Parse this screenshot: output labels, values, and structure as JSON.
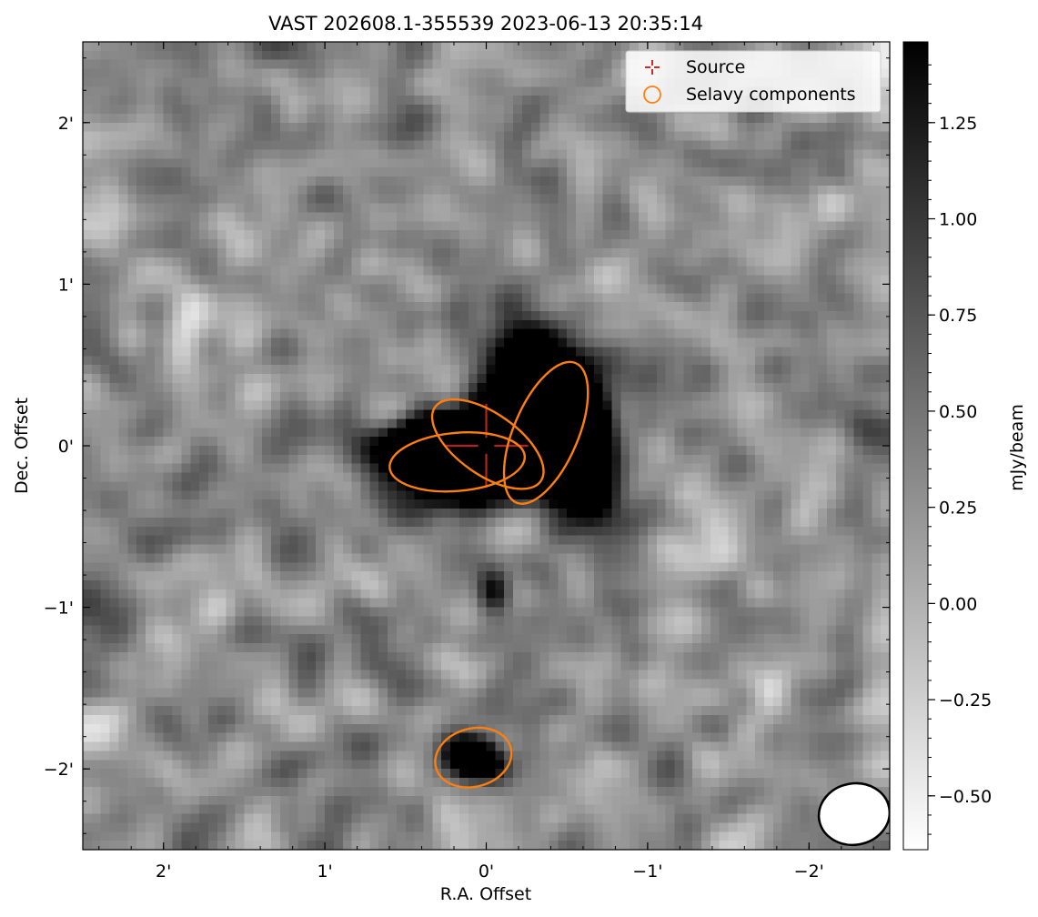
{
  "chart_data": {
    "type": "heatmap",
    "title": "VAST 202608.1-355539 2023-06-13 20:35:14",
    "xlabel": "R.A. Offset",
    "ylabel": "Dec. Offset",
    "xlim_arcmin": [
      2.5,
      -2.5
    ],
    "ylim_arcmin": [
      -2.5,
      2.5
    ],
    "x_ticks": [
      {
        "value": 2,
        "label": "2'"
      },
      {
        "value": 1,
        "label": "1'"
      },
      {
        "value": 0,
        "label": "0'"
      },
      {
        "value": -1,
        "label": "−1'"
      },
      {
        "value": -2,
        "label": "−2'"
      }
    ],
    "y_ticks": [
      {
        "value": 2,
        "label": "2'"
      },
      {
        "value": 1,
        "label": "1'"
      },
      {
        "value": 0,
        "label": "0'"
      },
      {
        "value": -1,
        "label": "−1'"
      },
      {
        "value": -2,
        "label": "−2'"
      }
    ],
    "colorbar": {
      "label": "mJy/beam",
      "range": [
        -0.64,
        1.46
      ],
      "colormap": "gray_r",
      "ticks": [
        {
          "value": 1.25,
          "label": "1.25"
        },
        {
          "value": 1.0,
          "label": "1.00"
        },
        {
          "value": 0.75,
          "label": "0.75"
        },
        {
          "value": 0.5,
          "label": "0.50"
        },
        {
          "value": 0.25,
          "label": "0.25"
        },
        {
          "value": 0.0,
          "label": "0.00"
        },
        {
          "value": -0.25,
          "label": "−0.25"
        },
        {
          "value": -0.5,
          "label": "−0.50"
        }
      ]
    },
    "legend": {
      "placement": "top-right",
      "entries": [
        {
          "label": "Source",
          "marker": "cross",
          "color": "#d62728"
        },
        {
          "label": "Selavy components",
          "marker": "circle",
          "color": "#ff7f0e"
        }
      ]
    },
    "source": {
      "x": 0.0,
      "y": 0.0,
      "color": "#d62728"
    },
    "selavy_components": [
      {
        "x": 0.18,
        "y": -0.1,
        "major": 0.42,
        "minor": 0.18,
        "angle_deg": 5
      },
      {
        "x": -0.01,
        "y": 0.01,
        "major": 0.4,
        "minor": 0.19,
        "angle_deg": -35
      },
      {
        "x": -0.37,
        "y": 0.08,
        "major": 0.47,
        "minor": 0.2,
        "angle_deg": 67
      },
      {
        "x": 0.08,
        "y": -1.93,
        "major": 0.24,
        "minor": 0.18,
        "angle_deg": 15
      }
    ],
    "beam": {
      "x": -2.28,
      "y": -2.28,
      "major": 0.22,
      "minor": 0.19,
      "angle_deg": 10
    },
    "bright_regions": [
      {
        "x": 0.1,
        "y": -0.05,
        "sx": 0.33,
        "sy": 0.12,
        "angle_deg": 5,
        "amp": 2.6
      },
      {
        "x": -0.12,
        "y": 0.05,
        "sx": 0.32,
        "sy": 0.15,
        "angle_deg": -35,
        "amp": 2.6
      },
      {
        "x": -0.42,
        "y": 0.13,
        "sx": 0.34,
        "sy": 0.16,
        "angle_deg": 65,
        "amp": 2.8
      },
      {
        "x": 0.08,
        "y": -1.93,
        "sx": 0.13,
        "sy": 0.09,
        "angle_deg": 15,
        "amp": 1.3
      },
      {
        "x": -0.05,
        "y": -0.9,
        "sx": 0.08,
        "sy": 0.1,
        "angle_deg": 0,
        "amp": 0.8
      }
    ]
  }
}
